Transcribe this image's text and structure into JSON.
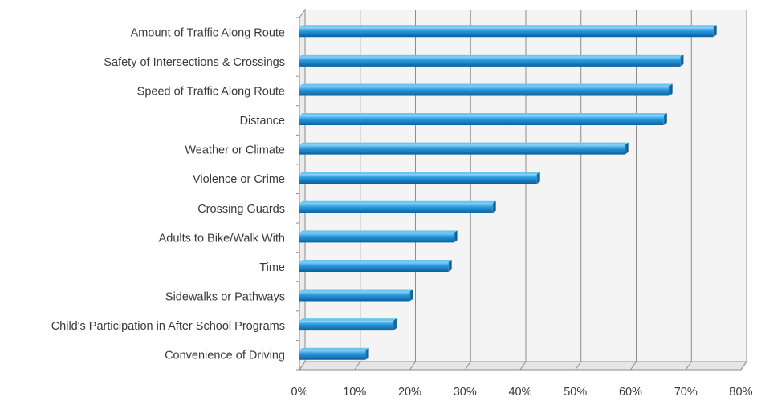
{
  "chart_data": {
    "type": "bar",
    "orientation": "horizontal",
    "categories": [
      "Amount of Traffic Along Route",
      "Safety of Intersections & Crossings",
      "Speed of Traffic Along Route",
      "Distance",
      "Weather or Climate",
      "Violence or Crime",
      "Crossing Guards",
      "Adults to Bike/Walk With",
      "Time",
      "Sidewalks or Pathways",
      "Child's Participation in After School Programs",
      "Convenience of Driving"
    ],
    "values": [
      75,
      69,
      67,
      66,
      59,
      43,
      35,
      28,
      27,
      20,
      17,
      12
    ],
    "xlim": [
      0,
      80
    ],
    "xticks": [
      0,
      10,
      20,
      30,
      40,
      50,
      60,
      70,
      80
    ],
    "xtick_labels": [
      "0%",
      "10%",
      "20%",
      "30%",
      "40%",
      "50%",
      "60%",
      "70%",
      "80%"
    ],
    "title": "",
    "xlabel": "",
    "ylabel": "",
    "grid": "vertical",
    "legend": "none",
    "colors": {
      "bar": "#1f8fd6",
      "bar_light": "#6cc4f2",
      "bar_dark": "#0b5f9c",
      "grid": "#8c8c8c",
      "wall": "#f4f4f4"
    }
  }
}
